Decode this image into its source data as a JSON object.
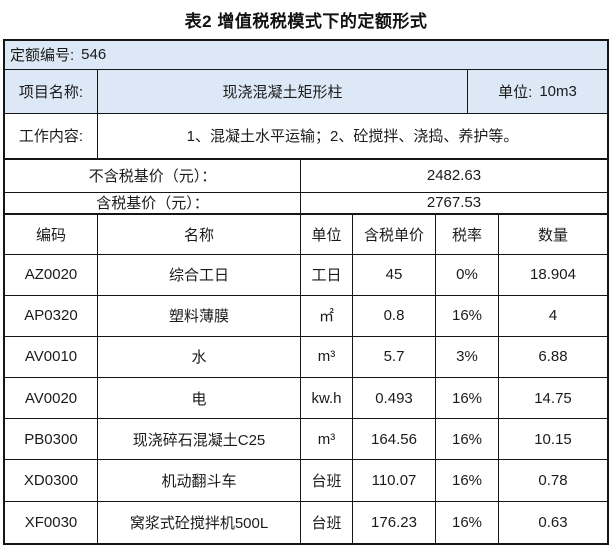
{
  "title": "表2 增值税税模式下的定额形式",
  "quota": {
    "label": "定额编号:",
    "value": "546"
  },
  "project": {
    "label": "项目名称:",
    "name": "现浇混凝土矩形柱",
    "unit_label": "单位:",
    "unit_value": "10m3"
  },
  "work": {
    "label": "工作内容:",
    "content": "1、混凝土水平运输；2、砼搅拌、浇捣、养护等。"
  },
  "base_price_excl_tax": {
    "label": "不含税基价（元）：",
    "value": "2482.63"
  },
  "base_price_incl_tax": {
    "label": "含税基价（元）：",
    "value": "2767.53"
  },
  "items": {
    "headers": {
      "code": "编码",
      "name": "名称",
      "unit": "单位",
      "price": "含税单价",
      "tax": "税率",
      "qty": "数量"
    },
    "rows": [
      {
        "code": "AZ0020",
        "name": "综合工日",
        "unit": "工日",
        "price": "45",
        "tax": "0%",
        "qty": "18.904"
      },
      {
        "code": "AP0320",
        "name": "塑料薄膜",
        "unit": "㎡",
        "price": "0.8",
        "tax": "16%",
        "qty": "4"
      },
      {
        "code": "AV0010",
        "name": "水",
        "unit": "m³",
        "price": "5.7",
        "tax": "3%",
        "qty": "6.88"
      },
      {
        "code": "AV0020",
        "name": "电",
        "unit": "kw.h",
        "price": "0.493",
        "tax": "16%",
        "qty": "14.75"
      },
      {
        "code": "PB0300",
        "name": "现浇碎石混凝土C25",
        "unit": "m³",
        "price": "164.56",
        "tax": "16%",
        "qty": "10.15"
      },
      {
        "code": "XD0300",
        "name": "机动翻斗车",
        "unit": "台班",
        "price": "110.07",
        "tax": "16%",
        "qty": "0.78"
      },
      {
        "code": "XF0030",
        "name": "窝浆式砼搅拌机500L",
        "unit": "台班",
        "price": "176.23",
        "tax": "16%",
        "qty": "0.63"
      }
    ]
  },
  "colors": {
    "highlight_bg": "#dce8f5",
    "border": "#151515"
  }
}
